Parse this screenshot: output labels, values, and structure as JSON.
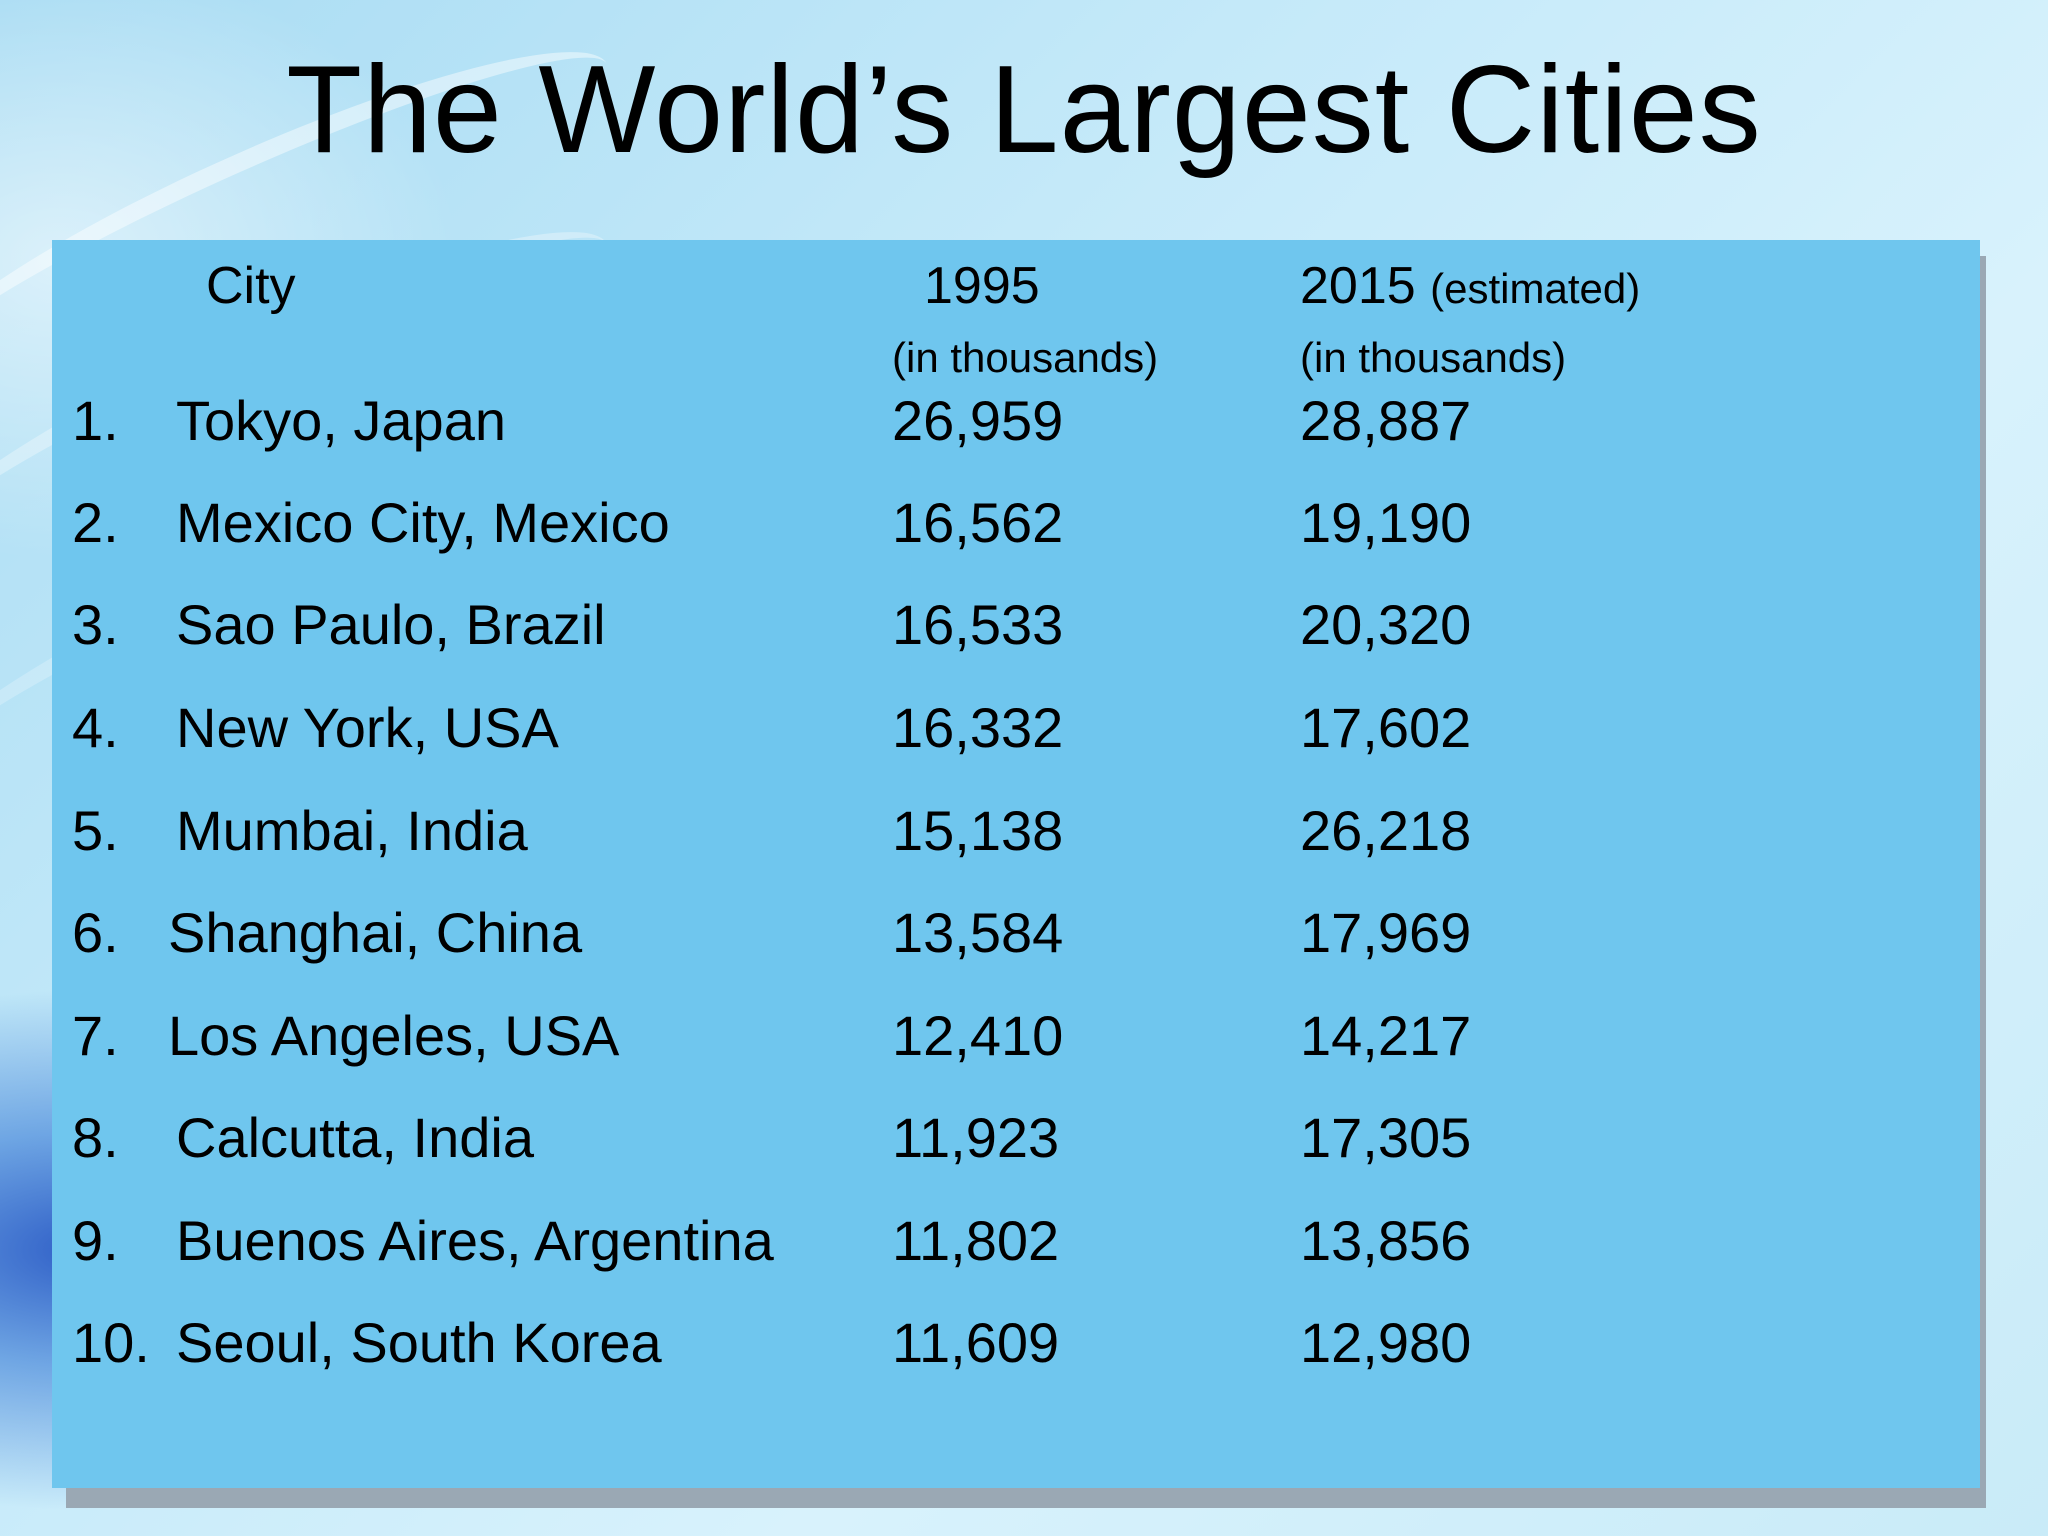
{
  "title": "The World’s Largest Cities",
  "table": {
    "headers": {
      "city": "City",
      "y1995": "1995",
      "y2015": "2015",
      "y2015_note": "(estimated)",
      "unit_1995": "(in thousands)",
      "unit_2015": "(in thousands)"
    },
    "rows": [
      {
        "rank": "1.",
        "city": "Tokyo, Japan",
        "v1995": "26,959",
        "v2015": "28,887"
      },
      {
        "rank": "2.",
        "city": "Mexico City, Mexico",
        "v1995": "16,562",
        "v2015": "19,190"
      },
      {
        "rank": "3.",
        "city": "Sao Paulo, Brazil",
        "v1995": "16,533",
        "v2015": "20,320"
      },
      {
        "rank": "4.",
        "city": "New York, USA",
        "v1995": "16,332",
        "v2015": "17,602"
      },
      {
        "rank": "5.",
        "city": "Mumbai, India",
        "v1995": "15,138",
        "v2015": "26,218"
      },
      {
        "rank": "6.",
        "city": "Shanghai, China",
        "v1995": "13,584",
        "v2015": "17,969"
      },
      {
        "rank": "7.",
        "city": "Los Angeles, USA",
        "v1995": "12,410",
        "v2015": "14,217"
      },
      {
        "rank": "8.",
        "city": "Calcutta, India",
        "v1995": "11,923",
        "v2015": "17,305"
      },
      {
        "rank": "9.",
        "city": "Buenos Aires, Argentina",
        "v1995": "11,802",
        "v2015": "13,856"
      },
      {
        "rank": "10.",
        "city": "Seoul, South Korea",
        "v1995": "11,609",
        "v2015": "12,980"
      }
    ]
  }
}
